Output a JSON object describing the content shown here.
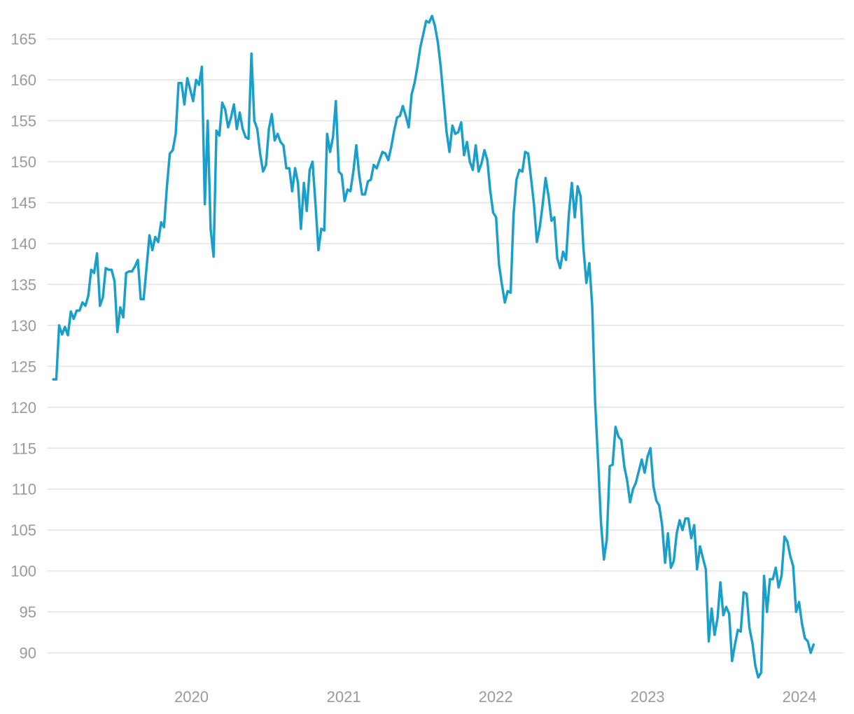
{
  "chart_data": {
    "type": "line",
    "title": "",
    "xlabel": "",
    "ylabel": "",
    "grid": true,
    "legend": "none",
    "ylim": [
      87,
      168
    ],
    "xlim": [
      "2019-02-01",
      "2024-03-25"
    ],
    "y_ticks": [
      90,
      95,
      100,
      105,
      110,
      115,
      120,
      125,
      130,
      135,
      140,
      145,
      150,
      155,
      160,
      165
    ],
    "x_ticks": [
      {
        "label": "2020",
        "date": "2020-01-01"
      },
      {
        "label": "2021",
        "date": "2021-01-01"
      },
      {
        "label": "2022",
        "date": "2022-01-01"
      },
      {
        "label": "2023",
        "date": "2023-01-01"
      },
      {
        "label": "2024",
        "date": "2024-01-01"
      }
    ],
    "colors": {
      "series": "#1a9fcb",
      "grid": "#e2e2e2",
      "tick": "#9a9a9a"
    },
    "series": [
      {
        "points": [
          [
            "2019-02-03",
            123.4
          ],
          [
            "2019-02-10",
            123.4
          ],
          [
            "2019-02-17",
            130.0
          ],
          [
            "2019-02-24",
            128.9
          ],
          [
            "2019-03-03",
            129.8
          ],
          [
            "2019-03-10",
            128.8
          ],
          [
            "2019-03-17",
            131.7
          ],
          [
            "2019-03-24",
            130.8
          ],
          [
            "2019-03-31",
            131.8
          ],
          [
            "2019-04-07",
            131.8
          ],
          [
            "2019-04-14",
            132.8
          ],
          [
            "2019-04-21",
            132.4
          ],
          [
            "2019-04-28",
            133.6
          ],
          [
            "2019-05-05",
            136.8
          ],
          [
            "2019-05-12",
            136.4
          ],
          [
            "2019-05-19",
            138.8
          ],
          [
            "2019-05-26",
            132.4
          ],
          [
            "2019-06-02",
            133.4
          ],
          [
            "2019-06-09",
            137.0
          ],
          [
            "2019-06-16",
            136.8
          ],
          [
            "2019-06-23",
            136.8
          ],
          [
            "2019-06-30",
            135.4
          ],
          [
            "2019-07-07",
            129.2
          ],
          [
            "2019-07-14",
            132.2
          ],
          [
            "2019-07-21",
            131.0
          ],
          [
            "2019-07-28",
            136.4
          ],
          [
            "2019-08-04",
            136.6
          ],
          [
            "2019-08-11",
            136.6
          ],
          [
            "2019-08-18",
            137.2
          ],
          [
            "2019-08-25",
            138.0
          ],
          [
            "2019-09-01",
            133.2
          ],
          [
            "2019-09-08",
            133.2
          ],
          [
            "2019-09-15",
            137.0
          ],
          [
            "2019-09-22",
            141.0
          ],
          [
            "2019-09-29",
            139.2
          ],
          [
            "2019-10-06",
            140.8
          ],
          [
            "2019-10-13",
            140.2
          ],
          [
            "2019-10-20",
            142.6
          ],
          [
            "2019-10-27",
            142.0
          ],
          [
            "2019-11-03",
            147.0
          ],
          [
            "2019-11-10",
            151.0
          ],
          [
            "2019-11-17",
            151.4
          ],
          [
            "2019-11-24",
            153.4
          ],
          [
            "2019-12-01",
            159.6
          ],
          [
            "2019-12-08",
            159.6
          ],
          [
            "2019-12-15",
            157.0
          ],
          [
            "2019-12-22",
            160.2
          ],
          [
            "2019-12-29",
            158.8
          ],
          [
            "2020-01-05",
            157.4
          ],
          [
            "2020-01-12",
            160.0
          ],
          [
            "2020-01-19",
            159.4
          ],
          [
            "2020-01-26",
            161.6
          ],
          [
            "2020-02-02",
            144.8
          ],
          [
            "2020-02-09",
            155.0
          ],
          [
            "2020-02-16",
            141.8
          ],
          [
            "2020-02-23",
            138.4
          ],
          [
            "2020-03-01",
            153.8
          ],
          [
            "2020-03-08",
            153.2
          ],
          [
            "2020-03-15",
            157.2
          ],
          [
            "2020-03-22",
            156.4
          ],
          [
            "2020-03-29",
            154.2
          ],
          [
            "2020-04-05",
            155.4
          ],
          [
            "2020-04-12",
            157.0
          ],
          [
            "2020-04-19",
            154.0
          ],
          [
            "2020-04-26",
            156.0
          ],
          [
            "2020-05-03",
            154.0
          ],
          [
            "2020-05-10",
            153.0
          ],
          [
            "2020-05-17",
            152.8
          ],
          [
            "2020-05-24",
            163.2
          ],
          [
            "2020-05-31",
            155.0
          ],
          [
            "2020-06-07",
            154.0
          ],
          [
            "2020-06-14",
            151.0
          ],
          [
            "2020-06-21",
            148.8
          ],
          [
            "2020-06-28",
            149.6
          ],
          [
            "2020-07-05",
            154.0
          ],
          [
            "2020-07-12",
            155.8
          ],
          [
            "2020-07-19",
            152.6
          ],
          [
            "2020-07-26",
            153.4
          ],
          [
            "2020-08-02",
            152.4
          ],
          [
            "2020-08-09",
            152.0
          ],
          [
            "2020-08-16",
            149.2
          ],
          [
            "2020-08-23",
            149.2
          ],
          [
            "2020-08-30",
            146.4
          ],
          [
            "2020-09-06",
            149.2
          ],
          [
            "2020-09-13",
            147.4
          ],
          [
            "2020-09-20",
            141.8
          ],
          [
            "2020-09-27",
            147.4
          ],
          [
            "2020-10-04",
            144.0
          ],
          [
            "2020-10-11",
            149.0
          ],
          [
            "2020-10-18",
            150.0
          ],
          [
            "2020-10-25",
            144.8
          ],
          [
            "2020-11-01",
            139.2
          ],
          [
            "2020-11-08",
            141.8
          ],
          [
            "2020-11-15",
            141.6
          ],
          [
            "2020-11-22",
            153.4
          ],
          [
            "2020-11-29",
            151.2
          ],
          [
            "2020-12-06",
            153.0
          ],
          [
            "2020-12-13",
            157.4
          ],
          [
            "2020-12-20",
            148.8
          ],
          [
            "2020-12-27",
            148.4
          ],
          [
            "2021-01-03",
            145.2
          ],
          [
            "2021-01-10",
            146.6
          ],
          [
            "2021-01-17",
            146.4
          ],
          [
            "2021-01-24",
            148.8
          ],
          [
            "2021-01-31",
            152.0
          ],
          [
            "2021-02-07",
            148.4
          ],
          [
            "2021-02-14",
            146.0
          ],
          [
            "2021-02-21",
            146.0
          ],
          [
            "2021-02-28",
            147.6
          ],
          [
            "2021-03-07",
            147.8
          ],
          [
            "2021-03-14",
            149.6
          ],
          [
            "2021-03-21",
            149.2
          ],
          [
            "2021-03-28",
            150.2
          ],
          [
            "2021-04-04",
            151.2
          ],
          [
            "2021-04-11",
            151.0
          ],
          [
            "2021-04-18",
            150.2
          ],
          [
            "2021-04-25",
            151.8
          ],
          [
            "2021-05-02",
            153.8
          ],
          [
            "2021-05-09",
            155.4
          ],
          [
            "2021-05-16",
            155.6
          ],
          [
            "2021-05-23",
            156.8
          ],
          [
            "2021-05-30",
            155.6
          ],
          [
            "2021-06-06",
            154.2
          ],
          [
            "2021-06-13",
            158.2
          ],
          [
            "2021-06-20",
            159.6
          ],
          [
            "2021-06-27",
            161.6
          ],
          [
            "2021-07-04",
            164.0
          ],
          [
            "2021-07-11",
            165.6
          ],
          [
            "2021-07-18",
            167.2
          ],
          [
            "2021-07-25",
            167.0
          ],
          [
            "2021-08-01",
            167.8
          ],
          [
            "2021-08-08",
            166.6
          ],
          [
            "2021-08-15",
            164.6
          ],
          [
            "2021-08-22",
            161.6
          ],
          [
            "2021-08-29",
            157.6
          ],
          [
            "2021-09-05",
            153.6
          ],
          [
            "2021-09-12",
            151.2
          ],
          [
            "2021-09-19",
            154.4
          ],
          [
            "2021-09-26",
            153.4
          ],
          [
            "2021-10-03",
            153.6
          ],
          [
            "2021-10-10",
            154.8
          ],
          [
            "2021-10-17",
            150.8
          ],
          [
            "2021-10-24",
            152.4
          ],
          [
            "2021-10-31",
            150.0
          ],
          [
            "2021-11-07",
            149.0
          ],
          [
            "2021-11-14",
            152.0
          ],
          [
            "2021-11-21",
            148.8
          ],
          [
            "2021-11-28",
            149.8
          ],
          [
            "2021-12-05",
            151.4
          ],
          [
            "2021-12-12",
            150.2
          ],
          [
            "2021-12-19",
            146.4
          ],
          [
            "2021-12-26",
            143.8
          ],
          [
            "2022-01-02",
            143.2
          ],
          [
            "2022-01-09",
            137.4
          ],
          [
            "2022-01-16",
            135.0
          ],
          [
            "2022-01-23",
            132.8
          ],
          [
            "2022-01-30",
            134.2
          ],
          [
            "2022-02-06",
            134.0
          ],
          [
            "2022-02-13",
            143.6
          ],
          [
            "2022-02-20",
            147.8
          ],
          [
            "2022-02-27",
            149.0
          ],
          [
            "2022-03-06",
            148.8
          ],
          [
            "2022-03-13",
            151.2
          ],
          [
            "2022-03-20",
            151.0
          ],
          [
            "2022-03-27",
            148.0
          ],
          [
            "2022-04-03",
            144.8
          ],
          [
            "2022-04-10",
            140.2
          ],
          [
            "2022-04-17",
            142.0
          ],
          [
            "2022-04-24",
            144.8
          ],
          [
            "2022-05-01",
            148.0
          ],
          [
            "2022-05-08",
            145.8
          ],
          [
            "2022-05-15",
            142.8
          ],
          [
            "2022-05-22",
            143.2
          ],
          [
            "2022-05-29",
            138.2
          ],
          [
            "2022-06-05",
            137.0
          ],
          [
            "2022-06-12",
            139.0
          ],
          [
            "2022-06-19",
            138.0
          ],
          [
            "2022-06-26",
            143.6
          ],
          [
            "2022-07-03",
            147.4
          ],
          [
            "2022-07-10",
            143.2
          ],
          [
            "2022-07-17",
            147.0
          ],
          [
            "2022-07-24",
            145.8
          ],
          [
            "2022-07-31",
            139.4
          ],
          [
            "2022-08-07",
            135.2
          ],
          [
            "2022-08-14",
            137.6
          ],
          [
            "2022-08-21",
            132.4
          ],
          [
            "2022-08-28",
            120.6
          ],
          [
            "2022-09-04",
            113.6
          ],
          [
            "2022-09-11",
            106.0
          ],
          [
            "2022-09-18",
            101.4
          ],
          [
            "2022-09-25",
            103.8
          ],
          [
            "2022-10-02",
            112.8
          ],
          [
            "2022-10-09",
            113.0
          ],
          [
            "2022-10-16",
            117.6
          ],
          [
            "2022-10-23",
            116.4
          ],
          [
            "2022-10-30",
            116.0
          ],
          [
            "2022-11-06",
            112.8
          ],
          [
            "2022-11-13",
            111.0
          ],
          [
            "2022-11-20",
            108.4
          ],
          [
            "2022-11-27",
            110.0
          ],
          [
            "2022-12-04",
            110.8
          ],
          [
            "2022-12-11",
            112.2
          ],
          [
            "2022-12-18",
            113.6
          ],
          [
            "2022-12-25",
            112.0
          ],
          [
            "2023-01-01",
            114.0
          ],
          [
            "2023-01-08",
            115.0
          ],
          [
            "2023-01-15",
            110.4
          ],
          [
            "2023-01-22",
            108.6
          ],
          [
            "2023-01-29",
            108.0
          ],
          [
            "2023-02-05",
            105.6
          ],
          [
            "2023-02-12",
            101.0
          ],
          [
            "2023-02-19",
            104.6
          ],
          [
            "2023-02-26",
            100.4
          ],
          [
            "2023-03-05",
            101.2
          ],
          [
            "2023-03-12",
            104.6
          ],
          [
            "2023-03-19",
            106.2
          ],
          [
            "2023-03-26",
            105.0
          ],
          [
            "2023-04-02",
            106.4
          ],
          [
            "2023-04-09",
            106.4
          ],
          [
            "2023-04-16",
            104.0
          ],
          [
            "2023-04-23",
            105.6
          ],
          [
            "2023-04-30",
            100.2
          ],
          [
            "2023-05-07",
            103.0
          ],
          [
            "2023-05-14",
            101.6
          ],
          [
            "2023-05-21",
            100.2
          ],
          [
            "2023-05-28",
            91.4
          ],
          [
            "2023-06-04",
            95.4
          ],
          [
            "2023-06-11",
            92.2
          ],
          [
            "2023-06-18",
            94.2
          ],
          [
            "2023-06-25",
            98.6
          ],
          [
            "2023-07-02",
            94.6
          ],
          [
            "2023-07-09",
            95.6
          ],
          [
            "2023-07-16",
            94.8
          ],
          [
            "2023-07-23",
            89.0
          ],
          [
            "2023-07-30",
            91.0
          ],
          [
            "2023-08-06",
            92.8
          ],
          [
            "2023-08-13",
            92.6
          ],
          [
            "2023-08-20",
            97.4
          ],
          [
            "2023-08-27",
            97.2
          ],
          [
            "2023-09-03",
            93.0
          ],
          [
            "2023-09-10",
            91.2
          ],
          [
            "2023-09-17",
            88.4
          ],
          [
            "2023-09-24",
            87.0
          ],
          [
            "2023-10-01",
            87.6
          ],
          [
            "2023-10-08",
            99.4
          ],
          [
            "2023-10-15",
            95.0
          ],
          [
            "2023-10-22",
            99.0
          ],
          [
            "2023-10-29",
            99.0
          ],
          [
            "2023-11-05",
            100.4
          ],
          [
            "2023-11-12",
            98.0
          ],
          [
            "2023-11-19",
            99.4
          ],
          [
            "2023-11-26",
            104.2
          ],
          [
            "2023-12-03",
            103.6
          ],
          [
            "2023-12-10",
            101.8
          ],
          [
            "2023-12-17",
            100.6
          ],
          [
            "2023-12-24",
            95.0
          ],
          [
            "2023-12-31",
            96.2
          ],
          [
            "2024-01-07",
            93.6
          ],
          [
            "2024-01-14",
            91.8
          ],
          [
            "2024-01-21",
            91.4
          ],
          [
            "2024-01-28",
            90.0
          ],
          [
            "2024-02-04",
            91.0
          ]
        ]
      }
    ]
  }
}
